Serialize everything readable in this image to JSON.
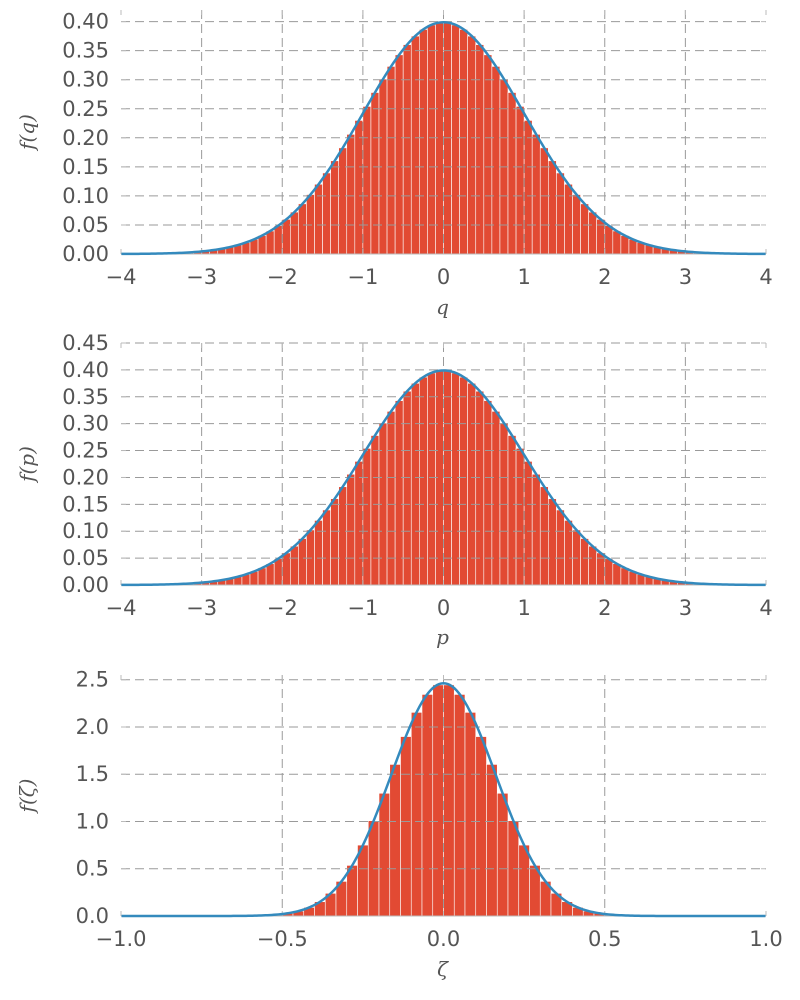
{
  "colors": {
    "bar": "#e24a33",
    "curve": "#348abd",
    "text": "#555555",
    "grid": "#9a9a9a"
  },
  "chart_data": [
    {
      "type": "bar",
      "overlay": "line",
      "xlabel": "q",
      "ylabel": "f(q)",
      "xlim": [
        -4,
        4
      ],
      "ylim": [
        0,
        0.42
      ],
      "xticks": [
        -4,
        -3,
        -2,
        -1,
        0,
        1,
        2,
        3,
        4
      ],
      "xtick_labels": [
        "−4",
        "−3",
        "−2",
        "−1",
        "0",
        "1",
        "2",
        "3",
        "4"
      ],
      "yticks": [
        0,
        0.05,
        0.1,
        0.15,
        0.2,
        0.25,
        0.3,
        0.35,
        0.4
      ],
      "ytick_labels": [
        "0.00",
        "0.05",
        "0.10",
        "0.15",
        "0.20",
        "0.25",
        "0.30",
        "0.35",
        "0.40"
      ],
      "grid": true,
      "hist_range": [
        -4,
        4
      ],
      "bins": 80,
      "mu": 0,
      "sigma": 1
    },
    {
      "type": "bar",
      "overlay": "line",
      "xlabel": "p",
      "ylabel": "f(p)",
      "xlim": [
        -4,
        4
      ],
      "ylim": [
        0,
        0.45
      ],
      "xticks": [
        -4,
        -3,
        -2,
        -1,
        0,
        1,
        2,
        3,
        4
      ],
      "xtick_labels": [
        "−4",
        "−3",
        "−2",
        "−1",
        "0",
        "1",
        "2",
        "3",
        "4"
      ],
      "yticks": [
        0,
        0.05,
        0.1,
        0.15,
        0.2,
        0.25,
        0.3,
        0.35,
        0.4,
        0.45
      ],
      "ytick_labels": [
        "0.00",
        "0.05",
        "0.10",
        "0.15",
        "0.20",
        "0.25",
        "0.30",
        "0.35",
        "0.40",
        "0.45"
      ],
      "grid": true,
      "hist_range": [
        -4,
        4
      ],
      "bins": 80,
      "mu": 0,
      "sigma": 1
    },
    {
      "type": "bar",
      "overlay": "line",
      "xlabel": "ζ",
      "ylabel": "f(ζ)",
      "xlim": [
        -1,
        1
      ],
      "ylim": [
        0,
        2.55
      ],
      "xticks": [
        -1,
        -0.5,
        0,
        0.5,
        1
      ],
      "xtick_labels": [
        "−1.0",
        "−0.5",
        "0.0",
        "0.5",
        "1.0"
      ],
      "yticks": [
        0,
        0.5,
        1,
        1.5,
        2,
        2.5
      ],
      "ytick_labels": [
        "0.0",
        "0.5",
        "1.0",
        "1.5",
        "2.0",
        "2.5"
      ],
      "grid": true,
      "hist_range": [
        -1,
        1
      ],
      "bins": 60,
      "mu": 0,
      "sigma": 0.162
    }
  ]
}
